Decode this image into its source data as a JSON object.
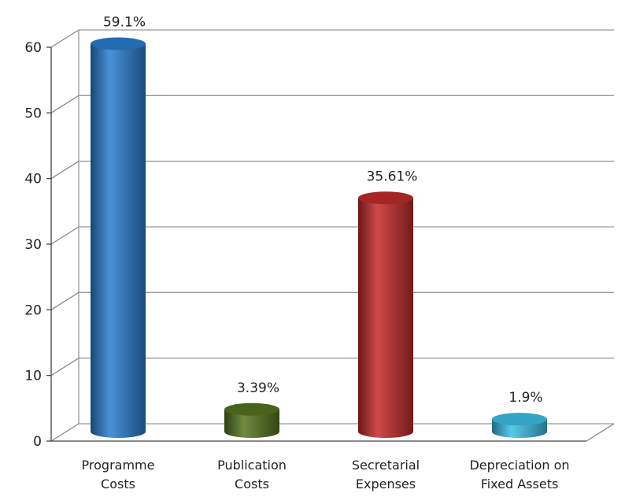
{
  "chart_data": {
    "type": "bar",
    "style": "3d-cylinder",
    "categories": [
      [
        "Programme",
        "Costs"
      ],
      [
        "Publication",
        "Costs"
      ],
      [
        "Secretarial",
        "Expenses"
      ],
      [
        "Depreciation on",
        "Fixed Assets"
      ]
    ],
    "values": [
      59.1,
      3.39,
      35.61,
      1.9
    ],
    "data_labels": [
      "59.1%",
      "3.39%",
      "35.61%",
      "1.9%"
    ],
    "colors": [
      "#2a7fd0",
      "#56751e",
      "#c42a2a",
      "#3cc1e6"
    ],
    "ylim": [
      0,
      60
    ],
    "yticks": [
      0,
      10,
      20,
      30,
      40,
      50,
      60
    ],
    "grid": true,
    "title": "",
    "xlabel": "",
    "ylabel": ""
  }
}
